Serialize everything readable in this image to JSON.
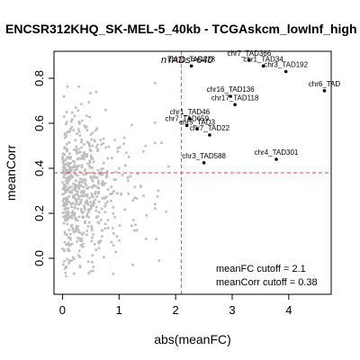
{
  "chart_data": {
    "type": "scatter",
    "title": "ENCSR312KHQ_SK-MEL-5_40kb - TCGAskcm_lowInf_high",
    "xlabel": "abs(meanFC)",
    "ylabel": "meanCorr",
    "xlim": [
      -0.15,
      4.75
    ],
    "ylim": [
      -0.16,
      0.92
    ],
    "x_ticks": [
      0,
      1,
      2,
      3,
      4
    ],
    "y_ticks": [
      0.0,
      0.2,
      0.4,
      0.6,
      0.8
    ],
    "grid": false,
    "colors": {
      "background_points": "#bebebe",
      "highlight_points": "#000000",
      "cutoff_lines": "#e0474c"
    },
    "cutoffs": {
      "meanFC": 2.1,
      "meanCorr": 0.38
    },
    "ntads_label": "nTADs=640",
    "annotations": [
      "meanFC cutoff = 2.1",
      "meanCorr cutoff = 0.38"
    ],
    "highlighted": [
      {
        "label": "chr7_TAD366",
        "x": 3.3,
        "y": 0.88
      },
      {
        "label": "chr1_TAD34",
        "x": 3.55,
        "y": 0.855
      },
      {
        "label": "chr3_TAD192",
        "x": 3.95,
        "y": 0.83
      },
      {
        "label": "chr11_TAD228",
        "x": 2.28,
        "y": 0.855
      },
      {
        "label": "chr6_TAD",
        "x": 4.63,
        "y": 0.745
      },
      {
        "label": "chr16_TAD136",
        "x": 2.97,
        "y": 0.72
      },
      {
        "label": "chr17_TAD118",
        "x": 3.05,
        "y": 0.683
      },
      {
        "label": "chr7_TAD659",
        "x": 2.2,
        "y": 0.59
      },
      {
        "label": "chr5_TAD3",
        "x": 2.38,
        "y": 0.575
      },
      {
        "label": "chr7_TAD22",
        "x": 2.6,
        "y": 0.548
      },
      {
        "label": "chr4_TAD301",
        "x": 3.78,
        "y": 0.44
      },
      {
        "label": "chr3_TAD588",
        "x": 2.5,
        "y": 0.425
      },
      {
        "label": "chr1_TAD46",
        "x": 2.25,
        "y": 0.62
      }
    ],
    "background_points_count": 640,
    "background_x_range": [
      0,
      2.3
    ],
    "background_y_range": [
      -0.08,
      0.8
    ]
  }
}
